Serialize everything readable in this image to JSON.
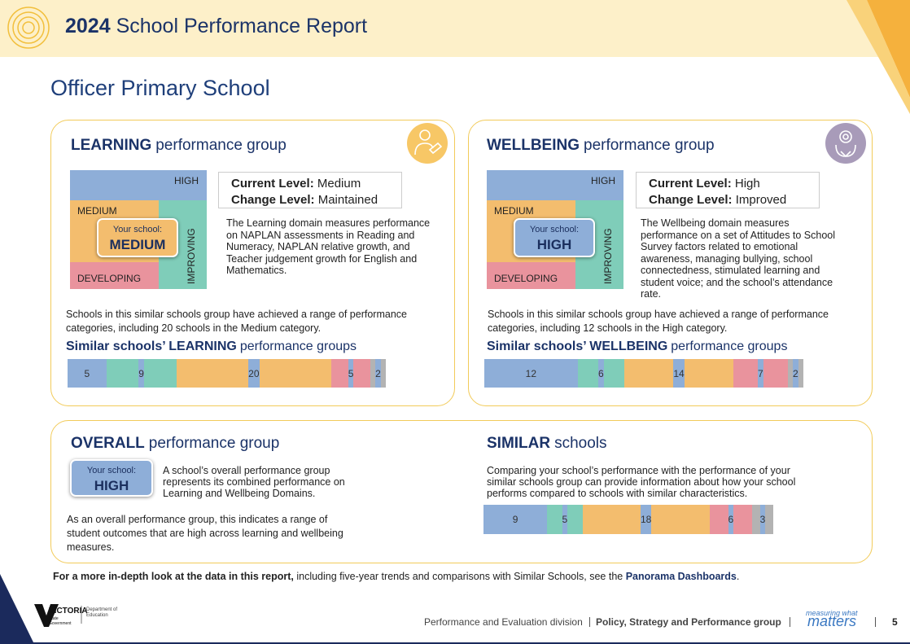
{
  "header": {
    "year": "2024",
    "title": "School Performance Report"
  },
  "school_name": "Officer Primary School",
  "learning": {
    "heading_bold": "LEARNING",
    "heading_rest": "performance group",
    "matrix": {
      "high": "HIGH",
      "medium": "MEDIUM",
      "improving": "IMPROVING",
      "developing": "DEVELOPING",
      "your_school_label": "Your school:",
      "your_school_value": "MEDIUM"
    },
    "current_level_label": "Current Level:",
    "current_level": "Medium",
    "change_level_label": "Change Level:",
    "change_level": "Maintained",
    "description": "The Learning domain measures performance on NAPLAN assessments in Reading and Numeracy, NAPLAN relative growth, and Teacher judgement growth for English and Mathematics.",
    "similar_text": "Schools in this similar schools group have achieved a range of performance categories, including 20 schools in the Medium category.",
    "similar_heading_bold": "Similar schools’ LEARNING",
    "similar_heading_rest": "performance groups",
    "distribution": [
      5,
      9,
      20,
      5,
      2
    ]
  },
  "wellbeing": {
    "heading_bold": "WELLBEING",
    "heading_rest": "performance group",
    "matrix": {
      "high": "HIGH",
      "medium": "MEDIUM",
      "improving": "IMPROVING",
      "developing": "DEVELOPING",
      "your_school_label": "Your school:",
      "your_school_value": "HIGH"
    },
    "current_level_label": "Current Level:",
    "current_level": "High",
    "change_level_label": "Change Level:",
    "change_level": "Improved",
    "description": "The Wellbeing domain measures performance on a set of Attitudes to School Survey factors related to emotional awareness, managing bullying, school connectedness, stimulated learning and student voice; and the school’s attendance rate.",
    "similar_text": "Schools in this similar schools group have achieved a range of performance categories, including 12 schools in the High category.",
    "similar_heading_bold": "Similar schools’ WELLBEING",
    "similar_heading_rest": "performance groups",
    "distribution": [
      12,
      6,
      14,
      7,
      2
    ]
  },
  "overall": {
    "heading_bold": "OVERALL",
    "heading_rest": "performance group",
    "your_school_label": "Your school:",
    "your_school_value": "HIGH",
    "description": "A school’s overall performance group represents its combined performance on Learning and Wellbeing Domains.",
    "note": "As an overall performance group, this indicates a range of student outcomes that are high across learning and wellbeing measures."
  },
  "similar": {
    "heading_bold": "SIMILAR",
    "heading_rest": "schools",
    "description": "Comparing your school’s performance with the performance of your similar schools group can provide information about how your school performs compared to schools with similar characteristics.",
    "distribution": [
      9,
      5,
      18,
      6,
      3
    ]
  },
  "footer_note": {
    "bold": "For a more in-depth look at the data in this report,",
    "text": "including five-year trends and comparisons with Similar Schools, see the",
    "link": "Panorama Dashboards",
    "end": "."
  },
  "footer": {
    "logo_name": "VICTORIA",
    "logo_sub": "State Government",
    "department": "Department of Education",
    "division": "Performance and Evaluation division",
    "group": "Policy, Strategy and Performance group",
    "tagline_small": "measuring what",
    "tagline_big": "matters",
    "page": "5"
  }
}
